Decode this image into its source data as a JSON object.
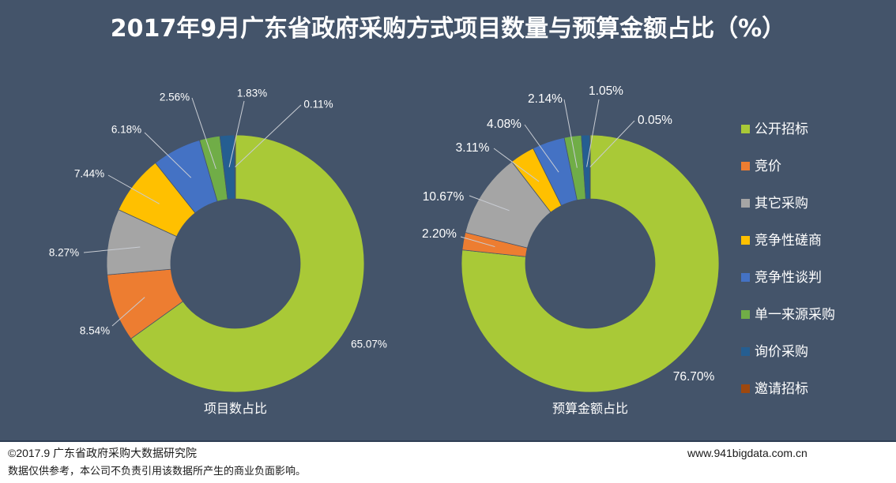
{
  "title": "2017年9月广东省政府采购方式项目数量与预算金额占比（%）",
  "chart_data": [
    {
      "type": "pie",
      "donut": true,
      "title": "项目数占比",
      "categories": [
        "公开招标",
        "竞价",
        "其它采购",
        "竞争性磋商",
        "竞争性谈判",
        "单一来源采购",
        "询价采购",
        "邀请招标"
      ],
      "values": [
        65.07,
        8.54,
        8.27,
        7.44,
        6.18,
        2.56,
        1.83,
        0.11
      ],
      "colors": [
        "#a9c937",
        "#ed7d31",
        "#a5a5a5",
        "#ffc000",
        "#4472c4",
        "#70ad47",
        "#255e91",
        "#9e480e"
      ],
      "legend": "right"
    },
    {
      "type": "pie",
      "donut": true,
      "title": "预算金额占比",
      "categories": [
        "公开招标",
        "竞价",
        "其它采购",
        "竞争性磋商",
        "竞争性谈判",
        "单一来源采购",
        "询价采购",
        "邀请招标"
      ],
      "values": [
        76.7,
        2.2,
        10.67,
        3.11,
        4.08,
        2.14,
        1.05,
        0.05
      ],
      "colors": [
        "#a9c937",
        "#ed7d31",
        "#a5a5a5",
        "#ffc000",
        "#4472c4",
        "#70ad47",
        "#255e91",
        "#9e480e"
      ],
      "legend": "right"
    }
  ],
  "footer": {
    "copyright": "©2017.9 广东省政府采购大数据研究院",
    "disclaimer": "数据仅供参考，本公司不负责引用该数据所产生的商业负面影响。",
    "website": "www.941bigdata.com.cn"
  }
}
